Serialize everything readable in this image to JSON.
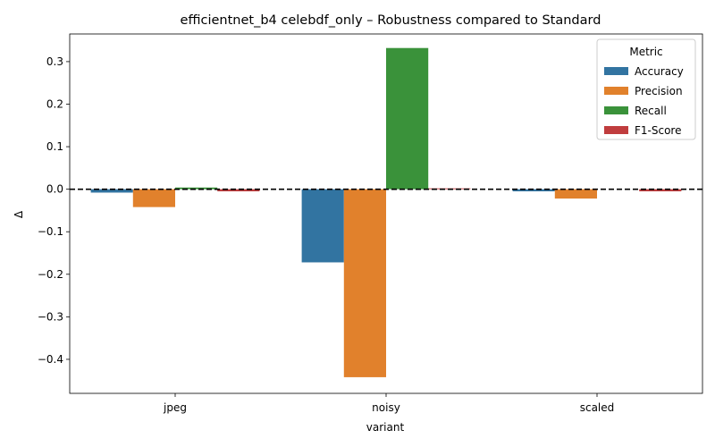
{
  "chart_data": {
    "type": "bar",
    "title": "efficientnet_b4 celebdf_only – Robustness compared to Standard",
    "xlabel": "variant",
    "ylabel": "Δ",
    "categories": [
      "jpeg",
      "noisy",
      "scaled"
    ],
    "ylim": [
      -0.48,
      0.365
    ],
    "yticks": [
      -0.4,
      -0.3,
      -0.2,
      -0.1,
      0.0,
      0.1,
      0.2,
      0.3
    ],
    "ytick_labels": [
      "−0.4",
      "−0.3",
      "−0.2",
      "−0.1",
      "0.0",
      "0.1",
      "0.2",
      "0.3"
    ],
    "reference_line": 0.0,
    "legend": {
      "title": "Metric",
      "placement": "top-right"
    },
    "grid": false,
    "series": [
      {
        "name": "Accuracy",
        "color": "#3274a1",
        "values": [
          -0.008,
          -0.172,
          -0.005
        ]
      },
      {
        "name": "Precision",
        "color": "#e1812c",
        "values": [
          -0.042,
          -0.442,
          -0.022
        ]
      },
      {
        "name": "Recall",
        "color": "#3a923a",
        "values": [
          0.004,
          0.332,
          0.0
        ]
      },
      {
        "name": "F1-Score",
        "color": "#c03d3e",
        "values": [
          -0.005,
          0.002,
          -0.005
        ]
      }
    ]
  }
}
